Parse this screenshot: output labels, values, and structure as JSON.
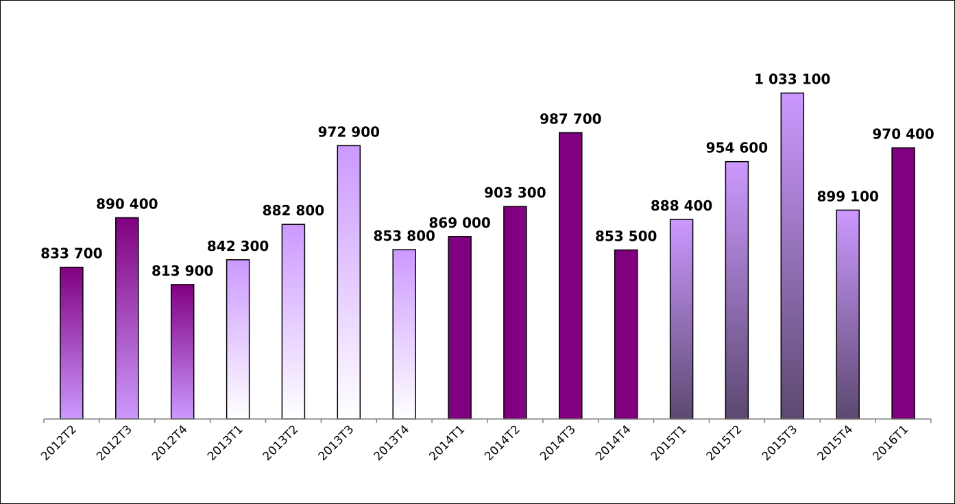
{
  "chart_data": {
    "type": "bar",
    "title": "",
    "xlabel": "",
    "ylabel": "",
    "ylim": [
      660000,
      1120000
    ],
    "grid": false,
    "legend": "none",
    "categories": [
      "2012T2",
      "2012T3",
      "2012T4",
      "2013T1",
      "2013T2",
      "2013T3",
      "2013T4",
      "2014T1",
      "2014T2",
      "2014T3",
      "2014T4",
      "2015T1",
      "2015T2",
      "2015T3",
      "2015T4",
      "2016T1"
    ],
    "values": [
      833700,
      890400,
      813900,
      842300,
      882800,
      972900,
      853800,
      869000,
      903300,
      987700,
      853500,
      888400,
      954600,
      1033100,
      899100,
      970400
    ],
    "value_labels": [
      "833 700",
      "890 400",
      "813 900",
      "842 300",
      "882 800",
      "972 900",
      "853 800",
      "869 000",
      "903 300",
      "987 700",
      "853 500",
      "888 400",
      "954 600",
      "1 033 100",
      "899 100",
      "970 400"
    ],
    "colors": {
      "lavender": "#cc99ff",
      "purple": "#800080",
      "slate": "#5c4870",
      "white": "#ffffff",
      "axis": "#808080",
      "outline": "#000000"
    },
    "bar_fills": [
      {
        "type": "gradient",
        "top": "#800080",
        "bottom": "#cc99ff"
      },
      {
        "type": "gradient",
        "top": "#800080",
        "bottom": "#cc99ff"
      },
      {
        "type": "gradient",
        "top": "#800080",
        "bottom": "#cc99ff"
      },
      {
        "type": "gradient",
        "top": "#cc99ff",
        "bottom": "#ffffff"
      },
      {
        "type": "gradient",
        "top": "#cc99ff",
        "bottom": "#ffffff"
      },
      {
        "type": "gradient",
        "top": "#cc99ff",
        "bottom": "#ffffff"
      },
      {
        "type": "gradient",
        "top": "#cc99ff",
        "bottom": "#ffffff"
      },
      {
        "type": "solid",
        "color": "#800080"
      },
      {
        "type": "solid",
        "color": "#800080"
      },
      {
        "type": "solid",
        "color": "#800080"
      },
      {
        "type": "solid",
        "color": "#800080"
      },
      {
        "type": "gradient",
        "top": "#cc99ff",
        "bottom": "#5c4870"
      },
      {
        "type": "gradient",
        "top": "#cc99ff",
        "bottom": "#5c4870"
      },
      {
        "type": "gradient",
        "top": "#cc99ff",
        "bottom": "#5c4870"
      },
      {
        "type": "gradient",
        "top": "#cc99ff",
        "bottom": "#5c4870"
      },
      {
        "type": "solid",
        "color": "#800080"
      }
    ]
  }
}
